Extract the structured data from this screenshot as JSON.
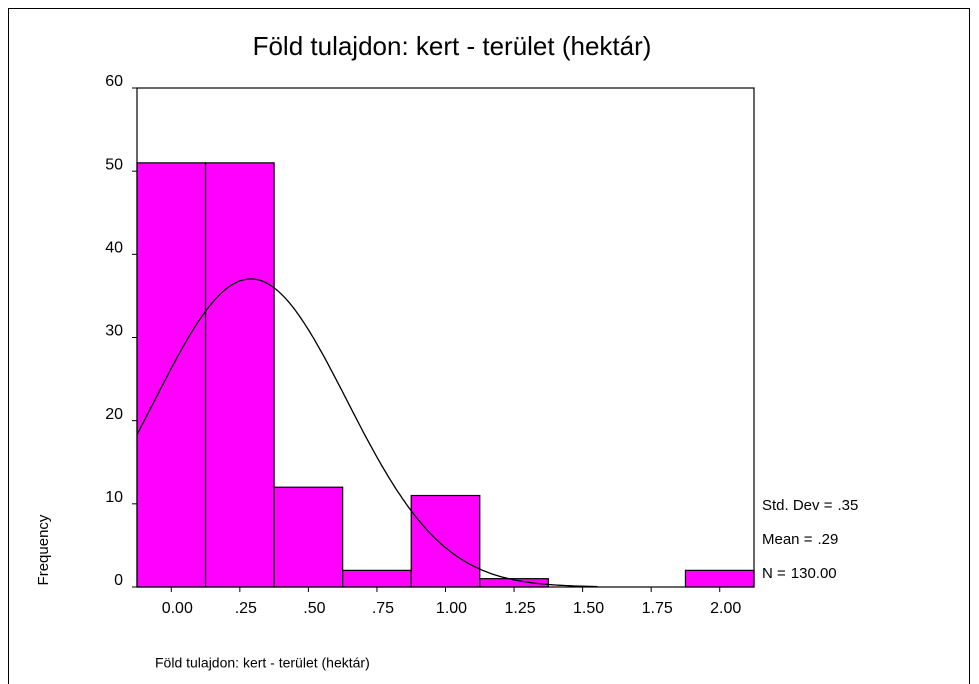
{
  "chart_data": {
    "type": "histogram",
    "title": "Föld tulajdon: kert - terület (hektár)",
    "xlabel": "Föld tulajdon: kert - terület (hektár)",
    "ylabel": "Frequency",
    "bins": [
      -0.125,
      0.125,
      0.375,
      0.625,
      0.875,
      1.125,
      1.375,
      1.625,
      1.875,
      2.125
    ],
    "values": [
      51,
      51,
      12,
      2,
      11,
      1,
      0,
      0,
      2
    ],
    "color": "#ff00ff",
    "xlim": [
      -0.125,
      2.125
    ],
    "xticks": [
      {
        "value": 0,
        "label": "0.00"
      },
      {
        "value": 0.25,
        "label": ".25"
      },
      {
        "value": 0.5,
        "label": ".50"
      },
      {
        "value": 0.75,
        "label": ".75"
      },
      {
        "value": 1,
        "label": "1.00"
      },
      {
        "value": 1.25,
        "label": "1.25"
      },
      {
        "value": 1.5,
        "label": "1.50"
      },
      {
        "value": 1.75,
        "label": "1.75"
      },
      {
        "value": 2,
        "label": "2.00"
      }
    ],
    "ylim": [
      0,
      60
    ],
    "yticks": [
      0,
      10,
      20,
      30,
      40,
      50,
      60
    ],
    "stats": [
      {
        "label": "Std. Dev =",
        "value": 0.35,
        "value_label": ".35"
      },
      {
        "label": "Mean =",
        "value": 0.29,
        "value_label": ".29"
      },
      {
        "label": "N =",
        "value": 130,
        "value_label": "130.00"
      }
    ]
  }
}
